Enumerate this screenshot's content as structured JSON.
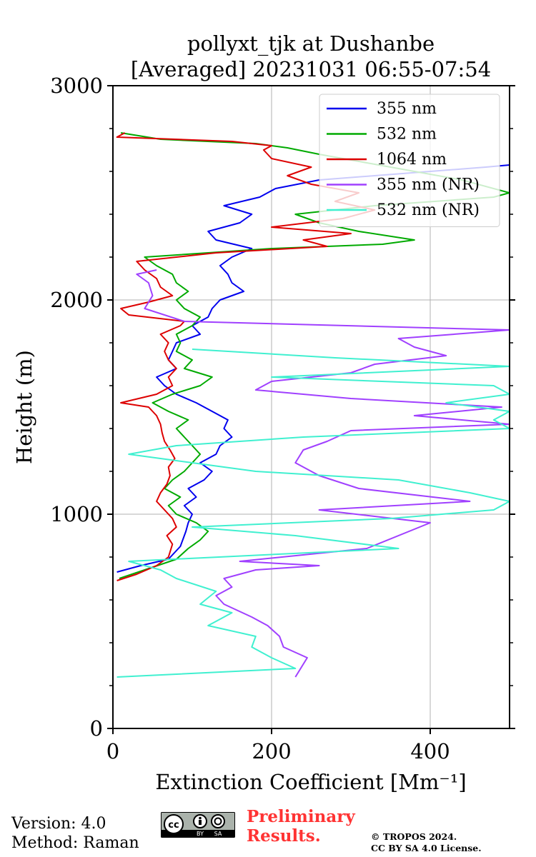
{
  "chart_data": {
    "type": "line",
    "title": [
      "pollyxt_tjk at Dushanbe",
      "[Averaged] 20231031 06:55-07:54"
    ],
    "xlabel": "Extinction Coefficient [Mm⁻¹]",
    "ylabel": "Height (m)",
    "xlim": [
      0,
      500
    ],
    "ylim": [
      0,
      3000
    ],
    "x_ticks": [
      0,
      200,
      400
    ],
    "y_ticks": [
      0,
      1000,
      2000,
      3000
    ],
    "grid": true,
    "legend_position": "top-right",
    "series": [
      {
        "name": "355 nm",
        "color": "#0000ee",
        "points": [
          [
            5,
            730
          ],
          [
            35,
            760
          ],
          [
            70,
            790
          ],
          [
            85,
            850
          ],
          [
            92,
            920
          ],
          [
            95,
            960
          ],
          [
            100,
            1000
          ],
          [
            90,
            1040
          ],
          [
            105,
            1080
          ],
          [
            95,
            1120
          ],
          [
            115,
            1160
          ],
          [
            125,
            1200
          ],
          [
            110,
            1240
          ],
          [
            130,
            1280
          ],
          [
            135,
            1320
          ],
          [
            150,
            1360
          ],
          [
            140,
            1400
          ],
          [
            145,
            1440
          ],
          [
            125,
            1480
          ],
          [
            105,
            1520
          ],
          [
            80,
            1560
          ],
          [
            65,
            1600
          ],
          [
            55,
            1640
          ],
          [
            80,
            1680
          ],
          [
            70,
            1720
          ],
          [
            75,
            1760
          ],
          [
            80,
            1800
          ],
          [
            110,
            1840
          ],
          [
            100,
            1880
          ],
          [
            120,
            1920
          ],
          [
            125,
            1960
          ],
          [
            135,
            2000
          ],
          [
            165,
            2040
          ],
          [
            150,
            2080
          ],
          [
            145,
            2120
          ],
          [
            135,
            2160
          ],
          [
            150,
            2200
          ],
          [
            175,
            2240
          ],
          [
            130,
            2280
          ],
          [
            120,
            2320
          ],
          [
            160,
            2360
          ],
          [
            175,
            2400
          ],
          [
            140,
            2440
          ],
          [
            185,
            2480
          ],
          [
            205,
            2520
          ],
          [
            260,
            2560
          ],
          [
            330,
            2580
          ],
          [
            400,
            2600
          ],
          [
            470,
            2620
          ],
          [
            500,
            2630
          ]
        ]
      },
      {
        "name": "532 nm",
        "color": "#00aa00",
        "points": [
          [
            8,
            700
          ],
          [
            40,
            740
          ],
          [
            80,
            790
          ],
          [
            95,
            840
          ],
          [
            110,
            880
          ],
          [
            120,
            920
          ],
          [
            105,
            960
          ],
          [
            80,
            1000
          ],
          [
            70,
            1040
          ],
          [
            85,
            1080
          ],
          [
            65,
            1120
          ],
          [
            75,
            1160
          ],
          [
            90,
            1200
          ],
          [
            100,
            1240
          ],
          [
            110,
            1280
          ],
          [
            100,
            1320
          ],
          [
            90,
            1360
          ],
          [
            80,
            1400
          ],
          [
            95,
            1440
          ],
          [
            70,
            1480
          ],
          [
            50,
            1520
          ],
          [
            75,
            1560
          ],
          [
            110,
            1600
          ],
          [
            125,
            1640
          ],
          [
            90,
            1680
          ],
          [
            100,
            1720
          ],
          [
            80,
            1760
          ],
          [
            85,
            1800
          ],
          [
            80,
            1840
          ],
          [
            100,
            1880
          ],
          [
            110,
            1920
          ],
          [
            90,
            1960
          ],
          [
            80,
            2000
          ],
          [
            95,
            2040
          ],
          [
            80,
            2080
          ],
          [
            75,
            2120
          ],
          [
            55,
            2160
          ],
          [
            40,
            2200
          ],
          [
            200,
            2240
          ],
          [
            340,
            2260
          ],
          [
            380,
            2280
          ],
          [
            310,
            2320
          ],
          [
            260,
            2360
          ],
          [
            230,
            2400
          ],
          [
            330,
            2440
          ],
          [
            480,
            2480
          ],
          [
            500,
            2500
          ],
          [
            440,
            2560
          ],
          [
            380,
            2600
          ],
          [
            320,
            2640
          ],
          [
            260,
            2680
          ],
          [
            220,
            2710
          ],
          [
            180,
            2730
          ],
          [
            60,
            2750
          ],
          [
            10,
            2780
          ]
        ]
      },
      {
        "name": "1064 nm",
        "color": "#dd0000",
        "points": [
          [
            5,
            690
          ],
          [
            30,
            720
          ],
          [
            55,
            760
          ],
          [
            70,
            800
          ],
          [
            75,
            860
          ],
          [
            68,
            900
          ],
          [
            80,
            940
          ],
          [
            75,
            980
          ],
          [
            65,
            1020
          ],
          [
            55,
            1060
          ],
          [
            60,
            1100
          ],
          [
            68,
            1140
          ],
          [
            72,
            1180
          ],
          [
            70,
            1220
          ],
          [
            78,
            1260
          ],
          [
            72,
            1300
          ],
          [
            65,
            1340
          ],
          [
            62,
            1380
          ],
          [
            60,
            1420
          ],
          [
            55,
            1460
          ],
          [
            45,
            1500
          ],
          [
            10,
            1520
          ],
          [
            55,
            1560
          ],
          [
            75,
            1600
          ],
          [
            70,
            1640
          ],
          [
            80,
            1680
          ],
          [
            70,
            1720
          ],
          [
            65,
            1760
          ],
          [
            70,
            1800
          ],
          [
            60,
            1840
          ],
          [
            85,
            1880
          ],
          [
            90,
            1900
          ],
          [
            20,
            1930
          ],
          [
            10,
            1960
          ],
          [
            45,
            1990
          ],
          [
            75,
            2020
          ],
          [
            60,
            2060
          ],
          [
            55,
            2100
          ],
          [
            40,
            2140
          ],
          [
            30,
            2180
          ],
          [
            130,
            2220
          ],
          [
            270,
            2250
          ],
          [
            240,
            2280
          ],
          [
            300,
            2310
          ],
          [
            200,
            2340
          ],
          [
            290,
            2380
          ],
          [
            330,
            2420
          ],
          [
            280,
            2460
          ],
          [
            310,
            2500
          ],
          [
            250,
            2540
          ],
          [
            220,
            2580
          ],
          [
            250,
            2620
          ],
          [
            200,
            2660
          ],
          [
            190,
            2700
          ],
          [
            200,
            2720
          ],
          [
            150,
            2740
          ],
          [
            5,
            2760
          ],
          [
            15,
            2780
          ]
        ]
      },
      {
        "name": "355 nm (NR)",
        "color": "#a040ff",
        "points": [
          [
            230,
            240
          ],
          [
            245,
            330
          ],
          [
            215,
            380
          ],
          [
            210,
            430
          ],
          [
            195,
            480
          ],
          [
            175,
            520
          ],
          [
            140,
            580
          ],
          [
            130,
            620
          ],
          [
            150,
            660
          ],
          [
            140,
            700
          ],
          [
            180,
            740
          ],
          [
            260,
            760
          ],
          [
            160,
            780
          ],
          [
            320,
            840
          ],
          [
            400,
            960
          ],
          [
            260,
            1020
          ],
          [
            450,
            1060
          ],
          [
            310,
            1120
          ],
          [
            260,
            1180
          ],
          [
            230,
            1240
          ],
          [
            240,
            1300
          ],
          [
            270,
            1340
          ],
          [
            300,
            1390
          ],
          [
            500,
            1420
          ],
          [
            380,
            1460
          ],
          [
            490,
            1500
          ],
          [
            300,
            1540
          ],
          [
            180,
            1580
          ],
          [
            200,
            1620
          ],
          [
            300,
            1660
          ],
          [
            330,
            1700
          ],
          [
            420,
            1740
          ],
          [
            380,
            1780
          ],
          [
            360,
            1820
          ],
          [
            500,
            1860
          ],
          [
            90,
            1900
          ],
          [
            40,
            1960
          ],
          [
            50,
            2020
          ],
          [
            45,
            2080
          ],
          [
            30,
            2120
          ],
          [
            55,
            2140
          ]
        ]
      },
      {
        "name": "532 nm (NR)",
        "color": "#40f0d0",
        "points": [
          [
            5,
            240
          ],
          [
            230,
            280
          ],
          [
            200,
            330
          ],
          [
            175,
            380
          ],
          [
            180,
            430
          ],
          [
            120,
            480
          ],
          [
            150,
            540
          ],
          [
            110,
            580
          ],
          [
            130,
            640
          ],
          [
            80,
            700
          ],
          [
            60,
            740
          ],
          [
            20,
            780
          ],
          [
            360,
            840
          ],
          [
            230,
            900
          ],
          [
            100,
            940
          ],
          [
            350,
            980
          ],
          [
            480,
            1020
          ],
          [
            500,
            1060
          ],
          [
            450,
            1100
          ],
          [
            360,
            1160
          ],
          [
            180,
            1200
          ],
          [
            100,
            1240
          ],
          [
            20,
            1280
          ],
          [
            80,
            1320
          ],
          [
            240,
            1360
          ],
          [
            500,
            1400
          ],
          [
            480,
            1440
          ],
          [
            500,
            1480
          ],
          [
            420,
            1520
          ],
          [
            500,
            1560
          ],
          [
            480,
            1600
          ],
          [
            200,
            1640
          ],
          [
            500,
            1690
          ],
          [
            280,
            1730
          ],
          [
            100,
            1770
          ]
        ]
      }
    ]
  },
  "footer": {
    "version": "Version: 4.0",
    "method": "Method: Raman",
    "prelim_line1": "Preliminary",
    "prelim_line2": "Results.",
    "copyright_line1": "© TROPOS 2024.",
    "copyright_line2": "CC BY SA 4.0 License.",
    "cc_by": "BY",
    "cc_sa": "SA"
  }
}
